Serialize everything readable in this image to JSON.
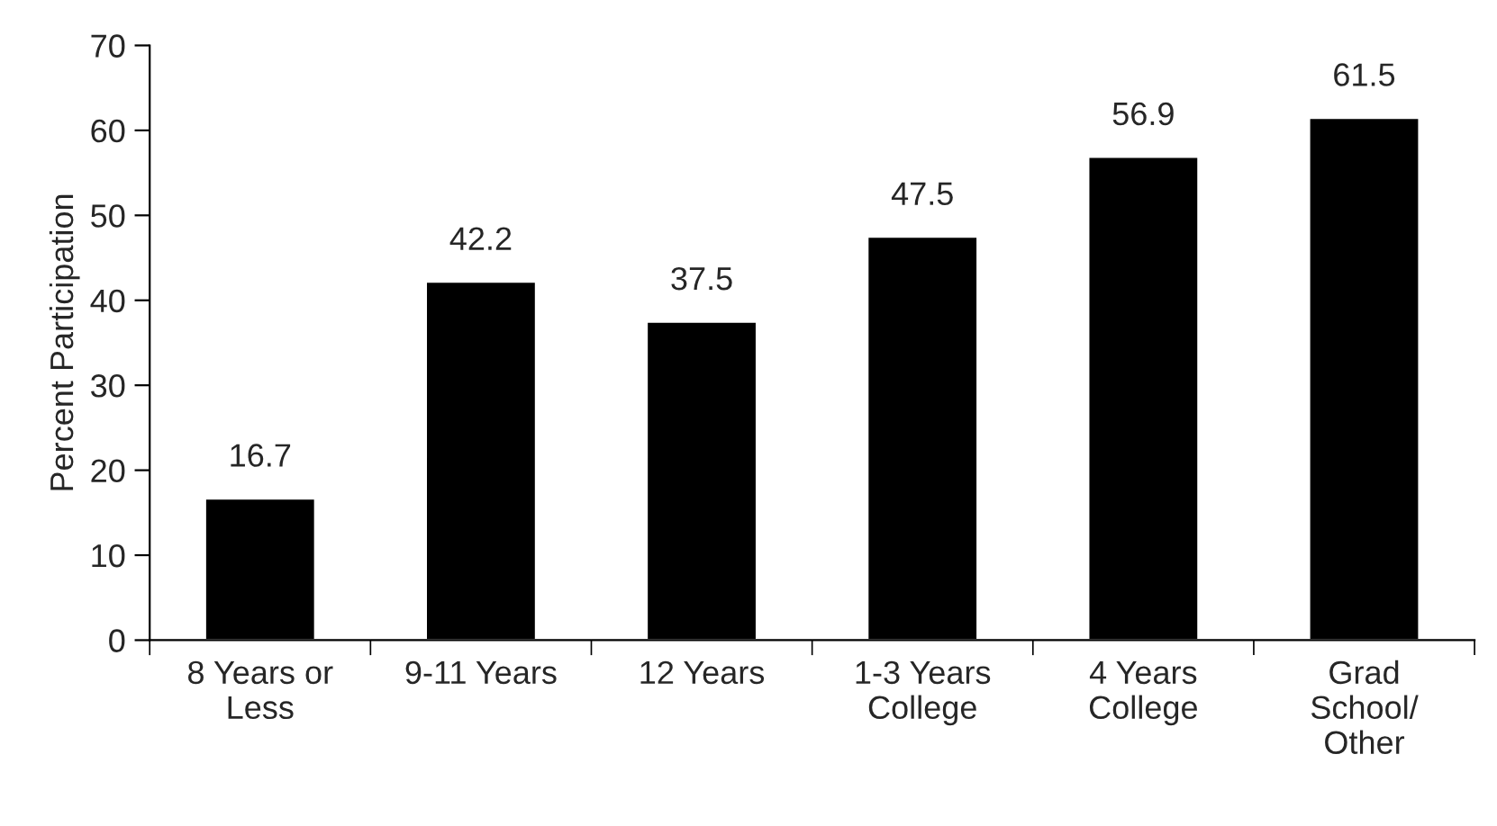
{
  "chart_data": {
    "type": "bar",
    "ylabel": "Percent Participation",
    "categories": [
      "8 Years or\nLess",
      "9-11 Years",
      "12 Years",
      "1-3 Years\nCollege",
      "4 Years\nCollege",
      "Grad\nSchool/\nOther"
    ],
    "values": [
      16.7,
      42.2,
      37.5,
      47.5,
      56.9,
      61.5
    ],
    "color": "#000000",
    "ylim": [
      0,
      70
    ],
    "yticks": [
      0,
      10,
      20,
      30,
      40,
      50,
      60,
      70
    ],
    "data_labels": true,
    "grid": false,
    "legend": false
  }
}
